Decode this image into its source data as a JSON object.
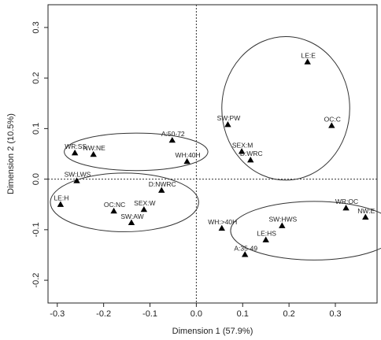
{
  "chart_data": {
    "type": "scatter",
    "xlabel": "Dimension 1 (57.9%)",
    "ylabel": "Dimension 2 (10.5%)",
    "xlim": [
      -0.32,
      0.39
    ],
    "ylim": [
      -0.245,
      0.345
    ],
    "xticks": [
      -0.3,
      -0.2,
      -0.1,
      0.0,
      0.1,
      0.2,
      0.3
    ],
    "yticks": [
      -0.2,
      -0.1,
      0.0,
      0.1,
      0.2,
      0.3
    ],
    "xtick_labels": [
      "-0.3",
      "-0.2",
      "-0.1",
      "0.0",
      "0.1",
      "0.2",
      "0.3"
    ],
    "ytick_labels": [
      "-0.2",
      "-0.1",
      "0.0",
      "0.1",
      "0.2",
      "0.3"
    ],
    "marker": "triangle",
    "reference_lines": {
      "x": 0,
      "y": 0,
      "style": "dotted"
    },
    "points": [
      {
        "label": "LE:E",
        "x": 0.24,
        "y": 0.232
      },
      {
        "label": "SW:PW",
        "x": 0.068,
        "y": 0.108
      },
      {
        "label": "OC:C",
        "x": 0.292,
        "y": 0.106
      },
      {
        "label": "SEX:M",
        "x": 0.098,
        "y": 0.055
      },
      {
        "label": "D:WRC",
        "x": 0.117,
        "y": 0.038
      },
      {
        "label": "A:50-72",
        "x": -0.052,
        "y": 0.077
      },
      {
        "label": "WR:SS",
        "x": -0.262,
        "y": 0.052
      },
      {
        "label": "NW:NE",
        "x": -0.222,
        "y": 0.049
      },
      {
        "label": "WH:40H",
        "x": -0.02,
        "y": 0.035
      },
      {
        "label": "SW:LWS",
        "x": -0.258,
        "y": -0.003
      },
      {
        "label": "D:NWRC",
        "x": -0.075,
        "y": -0.022
      },
      {
        "label": "LE:H",
        "x": -0.293,
        "y": -0.05
      },
      {
        "label": "OC:NC",
        "x": -0.178,
        "y": -0.063
      },
      {
        "label": "SEX:W",
        "x": -0.113,
        "y": -0.06
      },
      {
        "label": "SW:AW",
        "x": -0.14,
        "y": -0.086
      },
      {
        "label": "WR:OC",
        "x": 0.323,
        "y": -0.057
      },
      {
        "label": "NW:E",
        "x": 0.365,
        "y": -0.075
      },
      {
        "label": "WH:>40H",
        "x": 0.055,
        "y": -0.097
      },
      {
        "label": "SW:HWS",
        "x": 0.185,
        "y": -0.092
      },
      {
        "label": "LE:HS",
        "x": 0.15,
        "y": -0.12
      },
      {
        "label": "A:35-49",
        "x": 0.105,
        "y": -0.149
      }
    ],
    "ellipses": [
      {
        "group": "upper-right",
        "cx": 0.193,
        "cy": 0.14,
        "rx": 0.138,
        "ry": 0.142
      },
      {
        "group": "upper-left",
        "cx": -0.13,
        "cy": 0.054,
        "rx": 0.155,
        "ry": 0.037
      },
      {
        "group": "lower-left",
        "cx": -0.155,
        "cy": -0.046,
        "rx": 0.16,
        "ry": 0.058
      },
      {
        "group": "lower-right",
        "cx": 0.254,
        "cy": -0.102,
        "rx": 0.18,
        "ry": 0.058
      }
    ]
  }
}
